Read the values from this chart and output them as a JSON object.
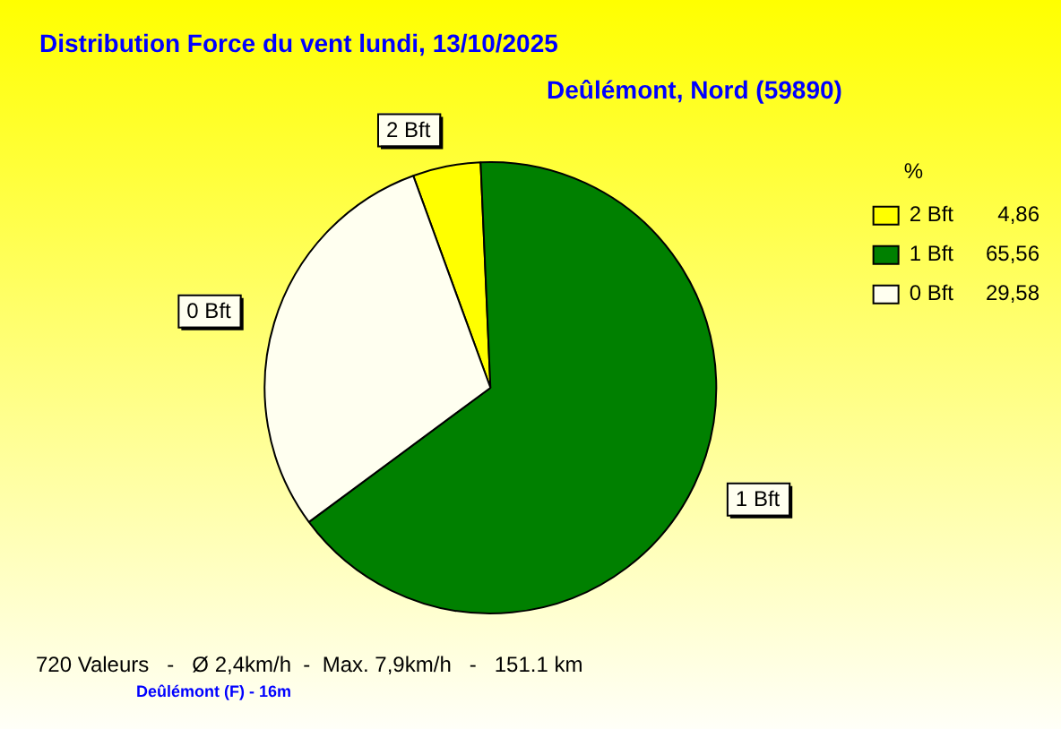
{
  "chart_data": {
    "type": "pie",
    "title": "Distribution Force du vent  lundi, 13/10/2025",
    "subtitle": "Deûlémont, Nord (59890)",
    "categories": [
      "2 Bft",
      "1 Bft",
      "0 Bft"
    ],
    "values": [
      4.86,
      65.56,
      29.58
    ],
    "value_labels": [
      "4,86",
      "65,56",
      "29,58"
    ],
    "colors": [
      "#ffff00",
      "#008000",
      "#fffff0"
    ],
    "legend": "top right",
    "legend_title": "%",
    "annotations": [
      "720 Valeurs   -   Ø 2,4km/h  -  Max. 7,9km/h   -   151.1 km",
      "Deûlémont (F) - 16m"
    ]
  }
}
